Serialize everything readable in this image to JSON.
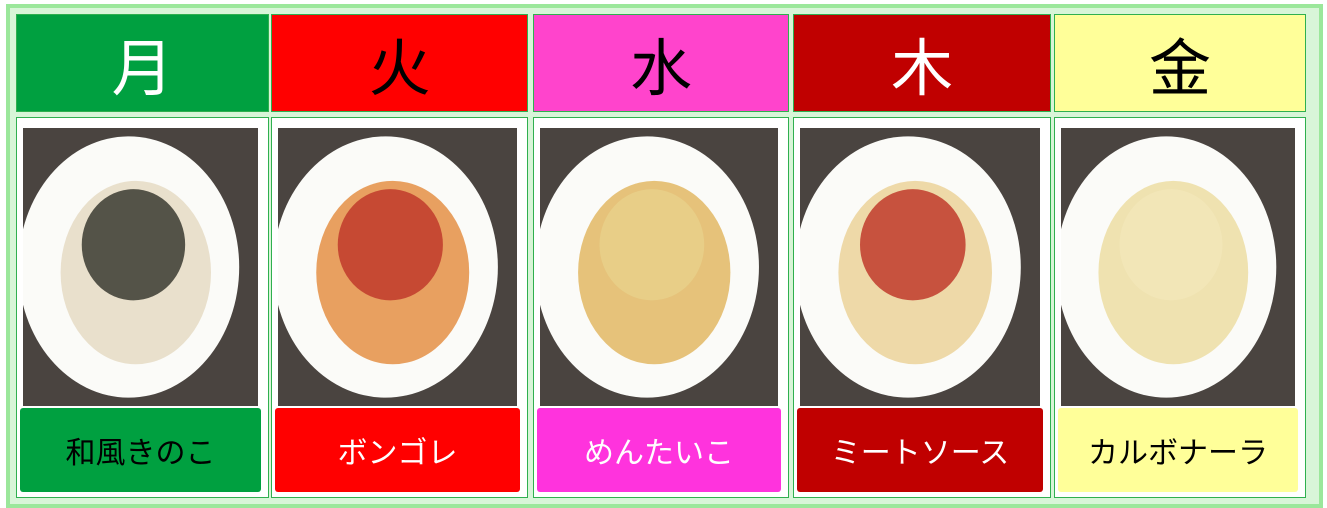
{
  "days": [
    {
      "day": "月",
      "dish": "和風きのこ"
    },
    {
      "day": "火",
      "dish": "ボンゴレ"
    },
    {
      "day": "水",
      "dish": "めんたいこ"
    },
    {
      "day": "木",
      "dish": "ミートソース"
    },
    {
      "day": "金",
      "dish": "カルボナーラ"
    }
  ]
}
